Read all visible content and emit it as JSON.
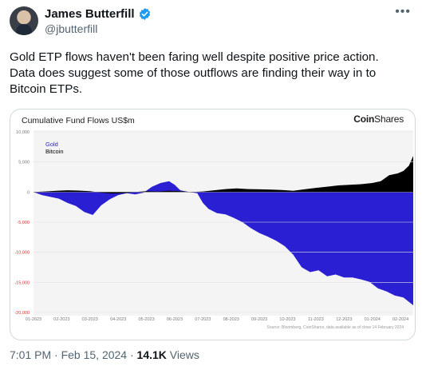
{
  "author": {
    "display_name": "James Butterfill",
    "handle": "@jbutterfill"
  },
  "more_icon": "ellipsis-icon",
  "tweet": {
    "line1": "Gold ETP flows haven't been faring well despite positive price action.",
    "line2": "Data does suggest some of those outflows are finding their way in to",
    "line3": "Bitcoin ETPs."
  },
  "meta": {
    "time": "7:01 PM · Feb 15, 2024 · ",
    "views": "14.1K",
    "views_label": " Views"
  },
  "colors": {
    "gold": "#2a1fd2",
    "bitcoin": "#000000",
    "negative_tick": "#d9342b",
    "verified": "#1d9bf0"
  },
  "chart_data": {
    "type": "area",
    "title": "Cumulative Fund Flows US$m",
    "brand": {
      "bold": "Coin",
      "light": "Shares"
    },
    "source": "Source: Bloomberg, CoinShares, data available as of close 14 February 2024",
    "legend_position": "top-left",
    "ylim": [
      -20000,
      10000
    ],
    "yticks": [
      "10,000",
      "5,000",
      "0",
      "-5,000",
      "-10,000",
      "-15,000",
      "-20,000"
    ],
    "ytick_values": [
      10000,
      5000,
      0,
      -5000,
      -10000,
      -15000,
      -20000
    ],
    "xlim": [
      0,
      13.45
    ],
    "xticks": [
      "01-2023",
      "02-2023",
      "03-2023",
      "04-2023",
      "05-2023",
      "06-2023",
      "07-2023",
      "08-2023",
      "09-2023",
      "10-2023",
      "11-2023",
      "12-2023",
      "01-2024",
      "02-2024"
    ],
    "series": [
      {
        "name": "Gold",
        "color": "#2a1fd2",
        "x": [
          0,
          0.3,
          0.6,
          0.9,
          1.2,
          1.5,
          1.8,
          2.1,
          2.4,
          2.7,
          3.0,
          3.3,
          3.6,
          3.9,
          4.2,
          4.5,
          4.8,
          5.0,
          5.2,
          5.5,
          5.8,
          6.0,
          6.2,
          6.5,
          6.8,
          7.1,
          7.4,
          7.7,
          8.0,
          8.3,
          8.6,
          8.9,
          9.2,
          9.5,
          9.8,
          10.1,
          10.4,
          10.7,
          11.0,
          11.3,
          11.6,
          11.9,
          12.2,
          12.5,
          12.8,
          13.1,
          13.45
        ],
        "values": [
          0,
          -500,
          -800,
          -1100,
          -1800,
          -2300,
          -3300,
          -3800,
          -2200,
          -1200,
          -500,
          -200,
          -400,
          -100,
          900,
          1500,
          1800,
          1200,
          300,
          0,
          -200,
          -1800,
          -2800,
          -3500,
          -3700,
          -4300,
          -5000,
          -6000,
          -6800,
          -7400,
          -8100,
          -9000,
          -10400,
          -12500,
          -13300,
          -13000,
          -14000,
          -13700,
          -14200,
          -14200,
          -14500,
          -14900,
          -16000,
          -16500,
          -17200,
          -17500,
          -18800
        ]
      },
      {
        "name": "Bitcoin",
        "color": "#000000",
        "x": [
          0,
          0.4,
          0.8,
          1.2,
          1.6,
          2.0,
          2.4,
          2.8,
          3.2,
          3.6,
          4.0,
          4.4,
          4.8,
          5.2,
          5.6,
          6.0,
          6.4,
          6.8,
          7.2,
          7.6,
          8.0,
          8.4,
          8.8,
          9.2,
          9.6,
          10.0,
          10.4,
          10.8,
          11.2,
          11.6,
          12.0,
          12.3,
          12.6,
          12.9,
          13.1,
          13.3,
          13.45
        ],
        "values": [
          0,
          100,
          200,
          300,
          250,
          150,
          -100,
          -250,
          -200,
          0,
          150,
          100,
          200,
          150,
          0,
          100,
          300,
          500,
          600,
          500,
          450,
          400,
          350,
          200,
          450,
          700,
          900,
          1100,
          1200,
          1300,
          1500,
          1800,
          2800,
          3100,
          3500,
          4400,
          6000
        ]
      }
    ]
  }
}
